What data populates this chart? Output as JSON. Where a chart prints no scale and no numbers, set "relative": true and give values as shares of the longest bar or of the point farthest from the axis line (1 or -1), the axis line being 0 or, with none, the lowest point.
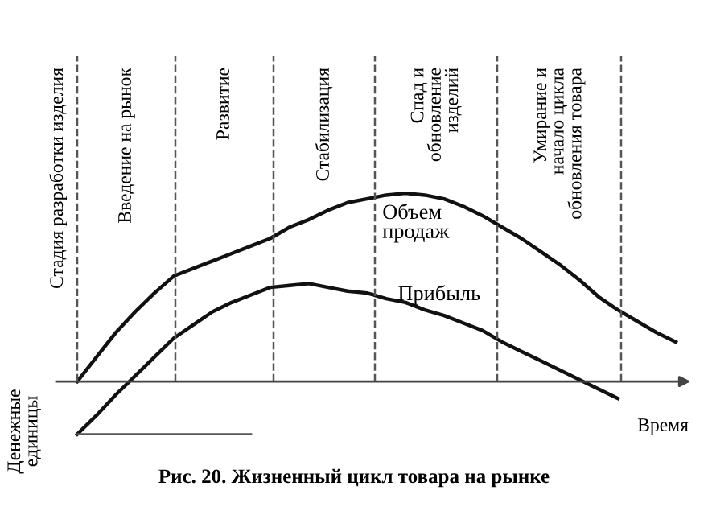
{
  "chart_data": {
    "type": "line",
    "relative": true,
    "title": "Рис. 20. Жизненный цикл товара на рынке",
    "xlabel": "Время",
    "ylabel": "Денежные\nединицы",
    "categories": [
      null,
      null,
      null,
      null,
      null,
      null,
      null,
      null,
      null,
      null,
      null,
      null,
      null,
      null,
      null,
      null,
      null,
      null,
      null,
      null,
      null,
      null,
      null,
      null,
      null,
      null,
      null,
      null,
      null,
      null,
      null,
      null
    ],
    "series": [
      {
        "name": "Объем\nпродаж",
        "color": "#111111",
        "values": [
          0,
          0.13,
          0.26,
          0.37,
          0.47,
          0.56,
          0.6,
          0.64,
          0.68,
          0.72,
          0.76,
          0.82,
          0.86,
          0.91,
          0.95,
          0.97,
          0.99,
          1.0,
          0.99,
          0.97,
          0.93,
          0.88,
          0.82,
          0.76,
          0.69,
          0.62,
          0.54,
          0.45,
          0.38,
          0.32,
          0.26,
          0.21
        ]
      },
      {
        "name": "Прибыль",
        "color": "#111111",
        "values": [
          -0.28,
          -0.18,
          -0.07,
          0.03,
          0.13,
          0.23,
          0.3,
          0.37,
          0.42,
          0.46,
          0.5,
          0.51,
          0.52,
          0.5,
          0.48,
          0.47,
          0.44,
          0.42,
          0.38,
          0.35,
          0.31,
          0.27,
          0.21,
          0.16,
          0.11,
          0.06,
          0.01,
          -0.04,
          -0.09,
          null,
          null,
          null
        ]
      },
      {
        "color": "#555555",
        "values": [
          -0.28,
          -0.28,
          -0.28,
          -0.28,
          -0.28,
          -0.28,
          -0.28,
          -0.28,
          -0.28,
          -0.28,
          null,
          null,
          null,
          null,
          null,
          null,
          null,
          null,
          null,
          null,
          null,
          null,
          null,
          null,
          null,
          null,
          null,
          null,
          null,
          null,
          null,
          null
        ]
      }
    ],
    "annotations": [
      "Стадия разработки изделия",
      "Введение на рынок",
      "Развитие",
      "Стабилизация",
      "Спад и\nобновление\nизделий",
      "Умирание и\nначало цикла\nобновления товара"
    ],
    "marker": "none",
    "line_style": "solid",
    "legend": false
  }
}
